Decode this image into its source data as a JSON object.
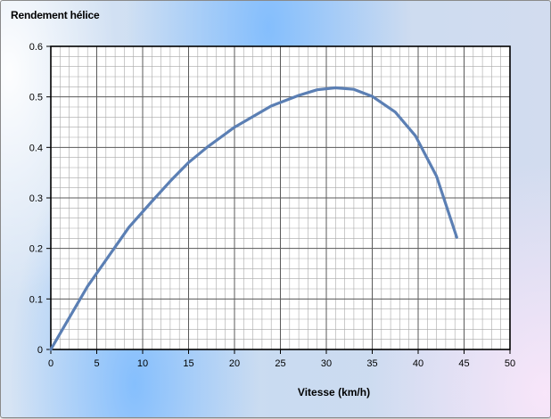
{
  "chart_data": {
    "type": "line",
    "title": "Rendement hélice",
    "xlabel": "Vitesse (km/h)",
    "ylabel": "",
    "xlim": [
      0,
      50
    ],
    "ylim": [
      0,
      0.6
    ],
    "x_ticks": [
      "0",
      "5",
      "10",
      "15",
      "20",
      "25",
      "30",
      "35",
      "40",
      "45",
      "50"
    ],
    "y_ticks": [
      "0",
      "0.1",
      "0.2",
      "0.3",
      "0.4",
      "0.5",
      "0.6"
    ],
    "grid": true,
    "series": [
      {
        "color": "#5b7fb4",
        "x": [
          0,
          4,
          8.5,
          11,
          13,
          15,
          17,
          20,
          24,
          27,
          29,
          31,
          33,
          35,
          37.5,
          39.7,
          42,
          44.2
        ],
        "y": [
          0,
          0.125,
          0.242,
          0.293,
          0.333,
          0.37,
          0.4,
          0.44,
          0.482,
          0.503,
          0.514,
          0.518,
          0.515,
          0.501,
          0.47,
          0.423,
          0.343,
          0.222
        ]
      }
    ]
  }
}
